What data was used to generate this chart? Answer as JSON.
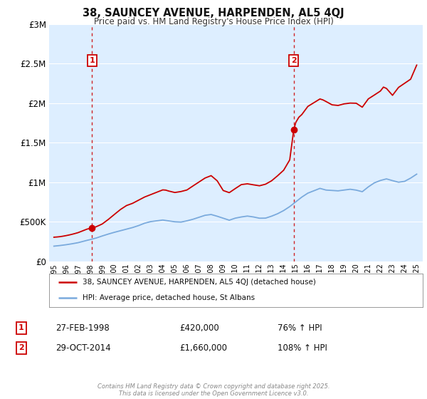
{
  "title": "38, SAUNCEY AVENUE, HARPENDEN, AL5 4QJ",
  "subtitle": "Price paid vs. HM Land Registry's House Price Index (HPI)",
  "background_color": "#ffffff",
  "plot_bg_color": "#ddeeff",
  "grid_color": "#ffffff",
  "red_color": "#cc0000",
  "blue_color": "#7aaadd",
  "sale1_year": 1998.15,
  "sale1_price": 420000,
  "sale1_label": "27-FEB-1998",
  "sale1_pct": "76%",
  "sale1_amount": "£420,000",
  "sale2_year": 2014.83,
  "sale2_price": 1660000,
  "sale2_label": "29-OCT-2014",
  "sale2_pct": "108%",
  "sale2_amount": "£1,660,000",
  "legend_line1": "38, SAUNCEY AVENUE, HARPENDEN, AL5 4QJ (detached house)",
  "legend_line2": "HPI: Average price, detached house, St Albans",
  "footer": "Contains HM Land Registry data © Crown copyright and database right 2025.\nThis data is licensed under the Open Government Licence v3.0.",
  "ylim": [
    0,
    3000000
  ],
  "xlim_start": 1994.6,
  "xlim_end": 2025.5,
  "yticks": [
    0,
    500000,
    1000000,
    1500000,
    2000000,
    2500000,
    3000000
  ],
  "ytick_labels": [
    "£0",
    "£500K",
    "£1M",
    "£1.5M",
    "£2M",
    "£2.5M",
    "£3M"
  ],
  "red_data": {
    "years": [
      1995.0,
      1995.25,
      1995.5,
      1995.75,
      1996.0,
      1996.25,
      1996.5,
      1996.75,
      1997.0,
      1997.25,
      1997.5,
      1997.75,
      1998.0,
      1998.15,
      1998.5,
      1998.75,
      1999.0,
      1999.5,
      2000.0,
      2000.5,
      2001.0,
      2001.5,
      2002.0,
      2002.5,
      2003.0,
      2003.5,
      2004.0,
      2004.25,
      2004.5,
      2005.0,
      2005.5,
      2006.0,
      2006.5,
      2007.0,
      2007.5,
      2008.0,
      2008.5,
      2009.0,
      2009.5,
      2010.0,
      2010.5,
      2011.0,
      2011.5,
      2012.0,
      2012.5,
      2013.0,
      2013.5,
      2014.0,
      2014.5,
      2014.83,
      2015.0,
      2015.25,
      2015.5,
      2016.0,
      2016.5,
      2017.0,
      2017.25,
      2017.5,
      2018.0,
      2018.5,
      2019.0,
      2019.5,
      2020.0,
      2020.5,
      2021.0,
      2021.5,
      2022.0,
      2022.25,
      2022.5,
      2023.0,
      2023.5,
      2024.0,
      2024.5,
      2025.0
    ],
    "values": [
      305000,
      308000,
      312000,
      318000,
      325000,
      333000,
      342000,
      352000,
      363000,
      378000,
      393000,
      408000,
      415000,
      420000,
      438000,
      455000,
      473000,
      530000,
      593000,
      655000,
      705000,
      733000,
      773000,
      813000,
      843000,
      873000,
      903000,
      900000,
      888000,
      870000,
      882000,
      902000,
      953000,
      1003000,
      1053000,
      1083000,
      1018000,
      895000,
      868000,
      920000,
      970000,
      980000,
      967000,
      955000,
      975000,
      1018000,
      1082000,
      1152000,
      1282000,
      1660000,
      1755000,
      1820000,
      1855000,
      1958000,
      2005000,
      2052000,
      2040000,
      2020000,
      1978000,
      1970000,
      1990000,
      2000000,
      1998000,
      1948000,
      2053000,
      2102000,
      2152000,
      2202000,
      2185000,
      2098000,
      2198000,
      2250000,
      2302000,
      2480000
    ]
  },
  "blue_data": {
    "years": [
      1995.0,
      1995.25,
      1995.5,
      1995.75,
      1996.0,
      1996.25,
      1996.5,
      1996.75,
      1997.0,
      1997.25,
      1997.5,
      1997.75,
      1998.0,
      1998.5,
      1998.75,
      1999.0,
      1999.5,
      2000.0,
      2000.5,
      2001.0,
      2001.5,
      2002.0,
      2002.5,
      2003.0,
      2003.5,
      2004.0,
      2004.5,
      2005.0,
      2005.5,
      2006.0,
      2006.5,
      2007.0,
      2007.5,
      2008.0,
      2008.5,
      2009.0,
      2009.5,
      2010.0,
      2010.5,
      2011.0,
      2011.5,
      2012.0,
      2012.5,
      2013.0,
      2013.5,
      2014.0,
      2014.5,
      2015.0,
      2015.5,
      2016.0,
      2016.5,
      2017.0,
      2017.5,
      2018.0,
      2018.5,
      2019.0,
      2019.5,
      2020.0,
      2020.5,
      2021.0,
      2021.5,
      2022.0,
      2022.5,
      2023.0,
      2023.5,
      2024.0,
      2024.5,
      2025.0
    ],
    "values": [
      192000,
      196000,
      200000,
      205000,
      210000,
      216000,
      222000,
      229000,
      236000,
      246000,
      256000,
      266000,
      275000,
      295000,
      308000,
      321000,
      345000,
      367000,
      387000,
      407000,
      427000,
      452000,
      482000,
      502000,
      512000,
      522000,
      511000,
      500000,
      496000,
      512000,
      532000,
      557000,
      582000,
      592000,
      570000,
      545000,
      520000,
      546000,
      561000,
      572000,
      561000,
      545000,
      546000,
      571000,
      602000,
      642000,
      692000,
      752000,
      812000,
      862000,
      892000,
      922000,
      901000,
      896000,
      891000,
      901000,
      911000,
      900000,
      880000,
      941000,
      992000,
      1022000,
      1042000,
      1020000,
      1000000,
      1011000,
      1052000,
      1102000
    ]
  }
}
